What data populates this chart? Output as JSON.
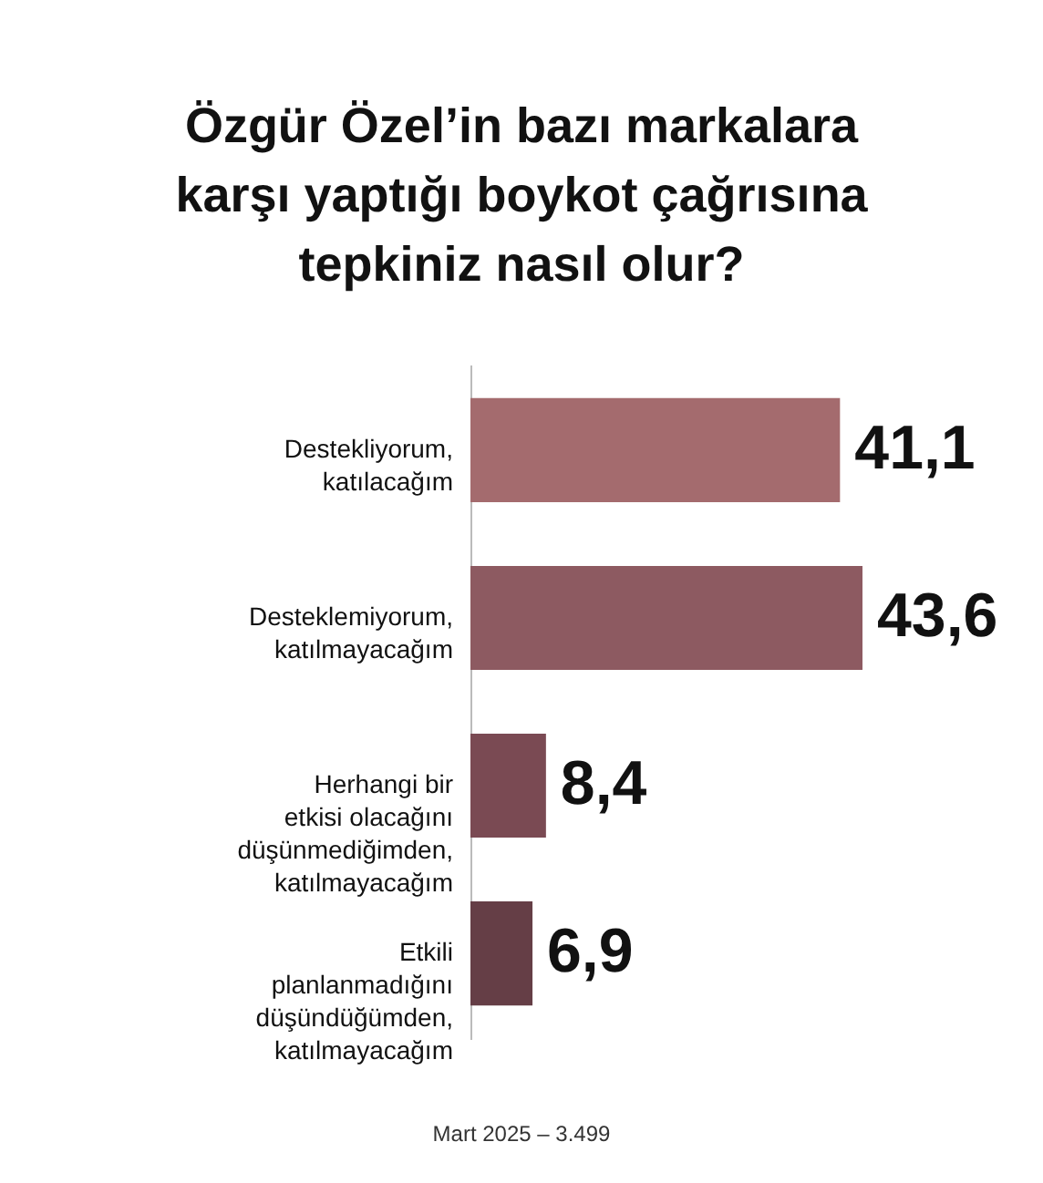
{
  "chart_data": {
    "type": "bar",
    "orientation": "horizontal",
    "title": "Özgür Özel’in bazı markalara karşı yaptığı boykot çağrısına tepkiniz nasıl olur?",
    "categories": [
      "Destekliyorum, katılacağım",
      "Desteklemiyorum, katılmayacağım",
      "Herhangi bir etkisi olacağını düşünmediğimden, katılmayacağım",
      "Etkili planlanmadığını düşündüğümden, katılmayacağım"
    ],
    "values": [
      41.1,
      43.6,
      8.4,
      6.9
    ],
    "value_labels": [
      "41,1",
      "43,6",
      "8,4",
      "6,9"
    ],
    "colors": [
      "#a46b6e",
      "#8d5a61",
      "#7a4a53",
      "#653e46"
    ],
    "legend": false,
    "annotations": [
      "Mart 2025 – 3.499"
    ]
  }
}
